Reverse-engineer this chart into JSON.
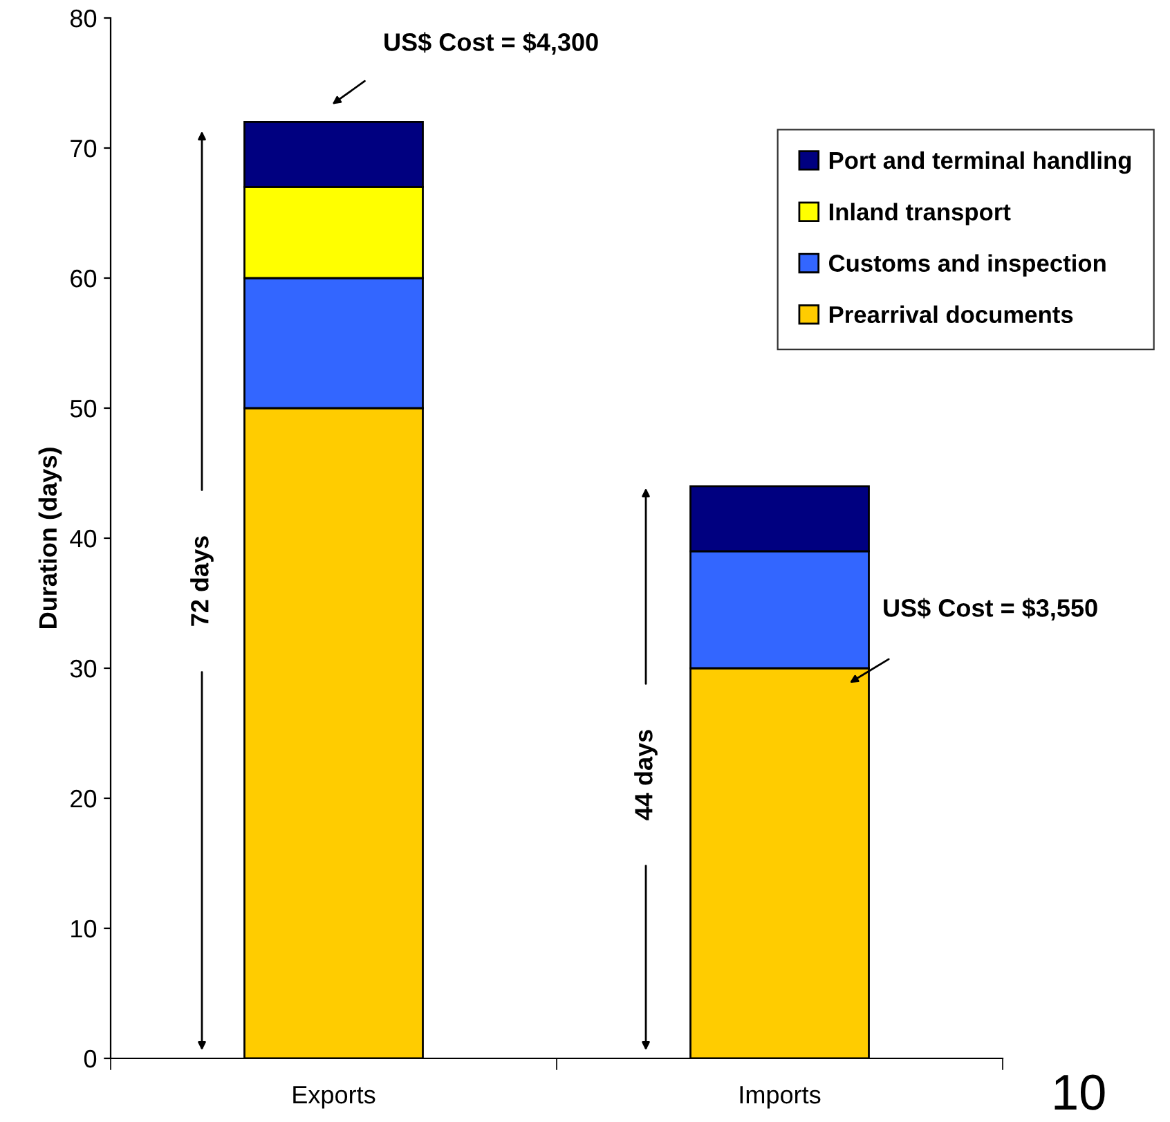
{
  "chart_data": {
    "type": "bar",
    "stacked": true,
    "ylabel": "Duration (days)",
    "categories": [
      "Exports",
      "Imports"
    ],
    "series": [
      {
        "name": "Prearrival documents",
        "color": "#ffcc00",
        "values": [
          50,
          30
        ]
      },
      {
        "name": "Customs and inspection",
        "color": "#3366ff",
        "values": [
          10,
          9
        ]
      },
      {
        "name": "Inland transport",
        "color": "#ffff00",
        "values": [
          7,
          0
        ]
      },
      {
        "name": "Port and terminal handling",
        "color": "#000080",
        "values": [
          5,
          5
        ]
      }
    ],
    "ylim": [
      0,
      80
    ],
    "yticks": [
      0,
      10,
      20,
      30,
      40,
      50,
      60,
      70,
      80
    ],
    "grid": false,
    "legend": "top right",
    "annotations": [
      "72 days",
      "44 days",
      "US$ Cost = $4,300",
      "US$ Cost = $3,550",
      "10"
    ]
  }
}
